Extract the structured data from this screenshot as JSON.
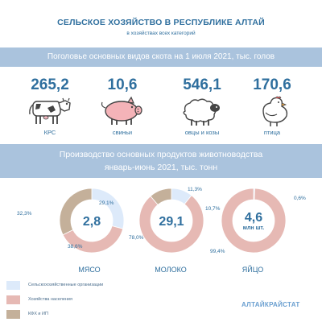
{
  "header": {
    "title": "СЕЛЬСКОЕ ХОЗЯЙСТВО В РЕСПУБЛИКЕ АЛТАЙ",
    "subtitle": "в хозяйствах всех категорий"
  },
  "livestock": {
    "heading": "Поголовье основных видов скота на 1 июля 2021, тыс. голов",
    "items": [
      {
        "value": "265,2",
        "label": "КРС",
        "icon": "cow-icon"
      },
      {
        "value": "10,6",
        "label": "свиньи",
        "icon": "pig-icon"
      },
      {
        "value": "546,1",
        "label": "овцы и козы",
        "icon": "sheep-icon"
      },
      {
        "value": "170,6",
        "label": "птица",
        "icon": "chicken-icon"
      }
    ]
  },
  "production": {
    "heading_line1": "Производство основных продуктов животноводства",
    "heading_line2": "январь-июнь 2021, тыс. тонн"
  },
  "legend": [
    {
      "label": "Сельскохозяйственные организации",
      "color": "#ddeafa"
    },
    {
      "label": "Хозяйства населения",
      "color": "#e6b9b4"
    },
    {
      "label": "КФХ и ИП",
      "color": "#c4b09a"
    }
  ],
  "chart_data": {
    "type": "pie",
    "categories": [
      "Сельскохозяйственные организации",
      "Хозяйства населения",
      "КФХ и ИП"
    ],
    "colors": [
      "#ddeafa",
      "#e6b9b4",
      "#c4b09a"
    ],
    "charts": [
      {
        "name": "МЯСО",
        "total": "2,8",
        "total_unit": "",
        "values": [
          29.1,
          38.6,
          32.3
        ],
        "labels": [
          "29,1%",
          "38,6%",
          "32,3%"
        ]
      },
      {
        "name": "МОЛОКО",
        "total": "29,1",
        "total_unit": "",
        "values": [
          10.7,
          78.0,
          11.3
        ],
        "labels": [
          "10,7%",
          "78,0%",
          "11,3%"
        ]
      },
      {
        "name": "ЯЙЦО",
        "total": "4,6",
        "total_unit": "млн шт.",
        "values": [
          0.6,
          99.4,
          0.0
        ],
        "labels": [
          "0,6%",
          "99,4%",
          ""
        ]
      }
    ]
  },
  "footer": {
    "brand": "АЛТАЙКРАЙСТАТ"
  }
}
